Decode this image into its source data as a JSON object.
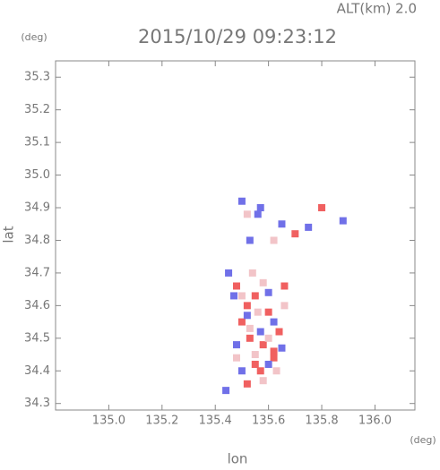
{
  "chart_data": {
    "type": "scatter",
    "title": "2015/10/29 09:23:12",
    "subtitle": "ALT(km) 2.0",
    "x_label": "lon",
    "y_label": "lat",
    "x_unit": "(deg)",
    "y_unit": "(deg)",
    "xlim": [
      134.8,
      136.15
    ],
    "ylim": [
      34.28,
      35.35
    ],
    "xticks": [
      {
        "value": 135,
        "label": "135.0"
      },
      135.2,
      135.4,
      135.6,
      135.8,
      {
        "value": 136,
        "label": "136.0"
      }
    ],
    "yticks": [
      34.3,
      34.4,
      34.5,
      34.6,
      34.7,
      34.8,
      34.9,
      {
        "value": 35,
        "label": "35.0"
      },
      35.1,
      35.2,
      35.3
    ],
    "series": [
      {
        "color": "#f06060",
        "x": [
          135.48,
          135.52,
          135.55,
          135.6,
          135.5,
          135.58,
          135.62,
          135.55,
          135.52,
          135.57,
          135.64,
          135.66,
          135.8,
          135.7,
          135.62,
          135.53
        ],
        "y": [
          34.66,
          34.6,
          34.63,
          34.58,
          34.55,
          34.48,
          34.44,
          34.42,
          34.36,
          34.4,
          34.52,
          34.66,
          34.9,
          34.82,
          34.46,
          34.5
        ]
      },
      {
        "color": "#7070e8",
        "x": [
          135.5,
          135.57,
          135.47,
          135.6,
          135.52,
          135.62,
          135.48,
          135.57,
          135.6,
          135.65,
          135.5,
          135.44,
          135.56,
          135.65,
          135.53,
          135.75,
          135.88,
          135.45
        ],
        "y": [
          34.92,
          34.9,
          34.63,
          34.64,
          34.57,
          34.55,
          34.48,
          34.52,
          34.42,
          34.47,
          34.4,
          34.34,
          34.88,
          34.85,
          34.8,
          34.84,
          34.86,
          34.7
        ]
      },
      {
        "color": "#f2c4c8",
        "x": [
          135.54,
          135.58,
          135.5,
          135.56,
          135.53,
          135.6,
          135.55,
          135.63,
          135.58,
          135.66,
          135.48,
          135.52,
          135.62
        ],
        "y": [
          34.7,
          34.67,
          34.63,
          34.58,
          34.53,
          34.5,
          34.45,
          34.4,
          34.37,
          34.6,
          34.44,
          34.88,
          34.8
        ]
      }
    ]
  }
}
